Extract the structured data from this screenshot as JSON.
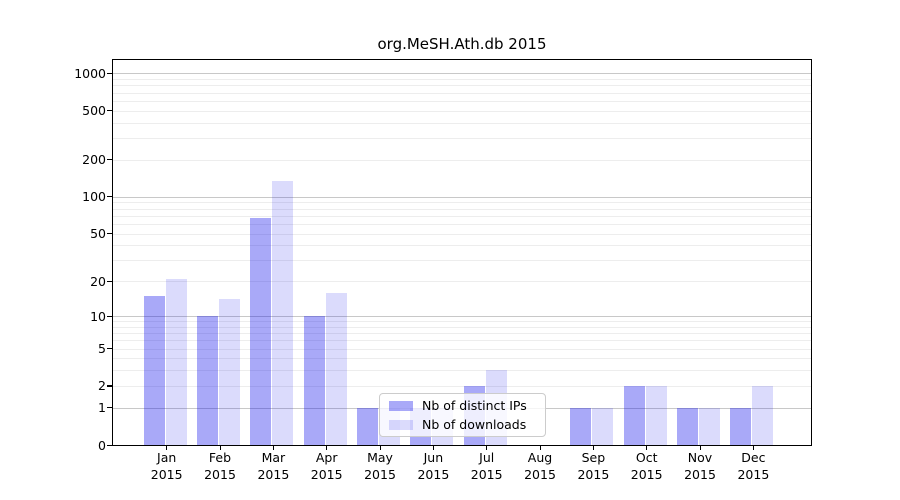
{
  "chart_data": {
    "type": "bar",
    "title": "org.MeSH.Ath.db 2015",
    "categories": [
      "Jan",
      "Feb",
      "Mar",
      "Apr",
      "May",
      "Jun",
      "Jul",
      "Aug",
      "Sep",
      "Oct",
      "Nov",
      "Dec"
    ],
    "year": "2015",
    "series": [
      {
        "name": "Nb of distinct IPs",
        "color": "#a9a9f8",
        "rgba": "rgba(10,10,235,0.35)",
        "values": [
          15,
          10,
          67,
          10,
          1,
          1,
          2,
          0,
          1,
          2,
          1,
          1
        ]
      },
      {
        "name": "Nb of downloads",
        "color": "#dbdbfc",
        "rgba": "rgba(10,10,235,0.145)",
        "values": [
          21,
          14,
          135,
          16,
          1,
          1,
          3,
          0,
          1,
          2,
          1,
          2
        ]
      }
    ],
    "yscale": "log1p",
    "ylim": [
      0,
      1280
    ],
    "yticks": [
      0,
      1,
      2,
      5,
      10,
      20,
      50,
      100,
      200,
      500,
      1000
    ],
    "grid": {
      "major": [
        1,
        10,
        100,
        1000
      ],
      "minor": [
        2,
        3,
        4,
        5,
        6,
        7,
        8,
        9,
        20,
        30,
        40,
        50,
        60,
        70,
        80,
        90,
        200,
        300,
        400,
        500,
        600,
        700,
        800,
        900
      ]
    },
    "legend_position": "inside-bottom-center"
  },
  "colors": {
    "grid_major": "#c8c8c8",
    "grid_minor": "#ededed",
    "axis": "#000000",
    "legend_border": "#cccccc"
  }
}
